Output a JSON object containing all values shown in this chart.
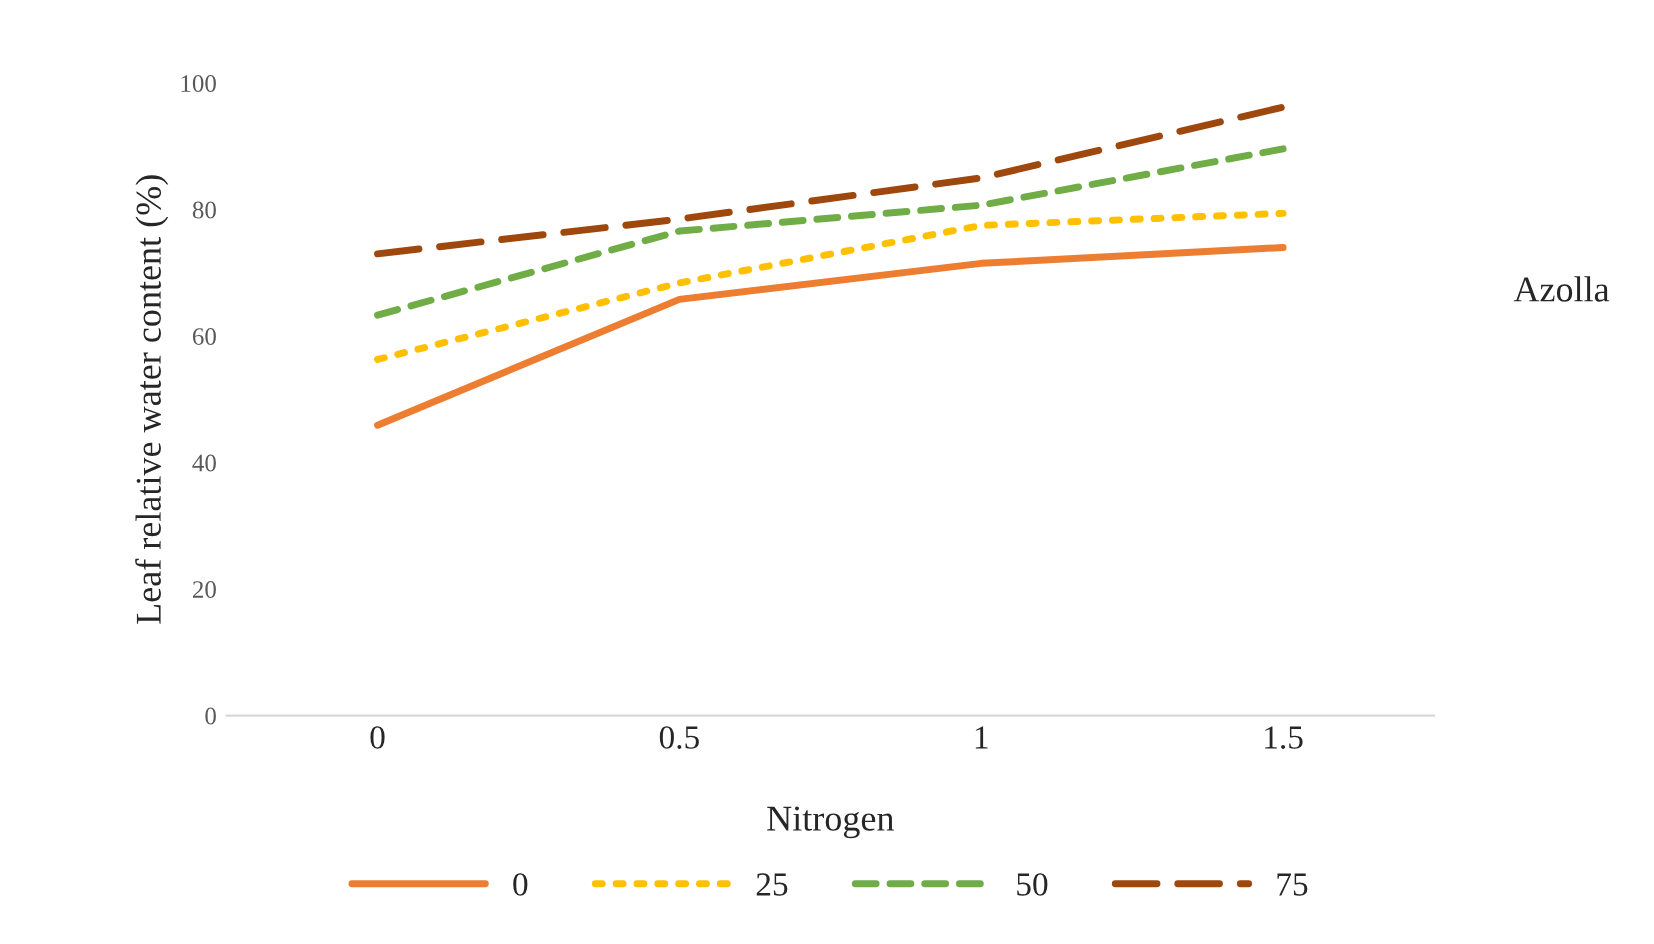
{
  "chart_data": {
    "type": "line",
    "xlabel": "Nitrogen",
    "ylabel": "Leaf relative water content (%)",
    "legend_title": "Azolla",
    "categories": [
      "0",
      "0.5",
      "1",
      "1.5"
    ],
    "series": [
      {
        "name": "0",
        "color": "#ed7d31",
        "line_style": "solid",
        "values": [
          45.9,
          65.8,
          71.5,
          74
        ]
      },
      {
        "name": "25",
        "color": "#ffc000",
        "line_style": "dotted",
        "values": [
          56.3,
          68.4,
          77.5,
          79.4
        ]
      },
      {
        "name": "50",
        "color": "#70ad47",
        "line_style": "dashed",
        "values": [
          63.3,
          76.6,
          80.7,
          89.6
        ]
      },
      {
        "name": "75",
        "color": "#9e480e",
        "line_style": "longdash",
        "values": [
          73,
          78.5,
          85,
          96.2
        ]
      }
    ],
    "ylim": [
      0,
      100
    ],
    "yticks": [
      0,
      20,
      40,
      60,
      80,
      100
    ],
    "grid": false,
    "legend": "bottom",
    "marker": "none"
  }
}
